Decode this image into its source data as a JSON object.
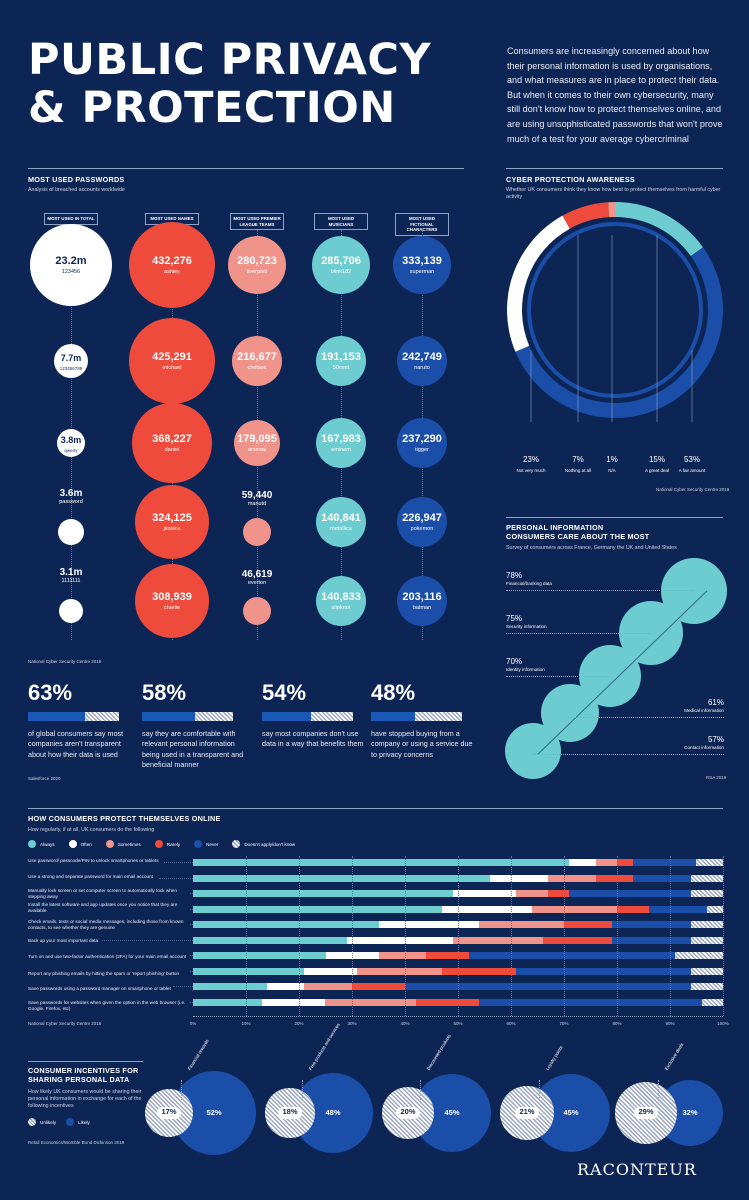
{
  "header": {
    "title_line1": "PUBLIC PRIVACY",
    "title_line2": "& PROTECTION",
    "intro": "Consumers are increasingly concerned about how their personal information is used by organisations, and what measures are in place to protect their data. But when it comes to their own cybersecurity, many still don't know how to protect themselves online, and are using unsophisticated passwords that won't prove much of a test for your average cybercriminal"
  },
  "passwords": {
    "title": "MOST USED PASSWORDS",
    "subtitle": "Analysis of breached accounts worldwide",
    "source": "National Cyber Security Centre 2019",
    "columns": [
      {
        "label": "MOST USED IN TOTAL",
        "color": "#ffffff",
        "text_color": "#0d2554",
        "items": [
          {
            "value": "23.2m",
            "name": "123456",
            "num": 23200000
          },
          {
            "value": "7.7m",
            "name": "123456789",
            "num": 7700000
          },
          {
            "value": "3.8m",
            "name": "qwerty",
            "num": 3800000
          },
          {
            "value": "3.6m",
            "name": "password",
            "num": 3600000
          },
          {
            "value": "3.1m",
            "name": "1111111",
            "num": 3100000
          }
        ]
      },
      {
        "label": "MOST USED NAMES",
        "color": "#ef4b3c",
        "text_color": "#ffffff",
        "items": [
          {
            "value": "432,276",
            "name": "ashley",
            "num": 432276
          },
          {
            "value": "425,291",
            "name": "michael",
            "num": 425291
          },
          {
            "value": "368,227",
            "name": "daniel",
            "num": 368227
          },
          {
            "value": "324,125",
            "name": "jessica",
            "num": 324125
          },
          {
            "value": "308,939",
            "name": "charlie",
            "num": 308939
          }
        ]
      },
      {
        "label": "MOST USED PREMIER LEAGUE TEAMS",
        "color": "#f0938a",
        "text_color": "#ffffff",
        "items": [
          {
            "value": "280,723",
            "name": "liverpool",
            "num": 280723
          },
          {
            "value": "216,677",
            "name": "chelsea",
            "num": 216677
          },
          {
            "value": "179,095",
            "name": "arsenal",
            "num": 179095
          },
          {
            "value": "59,440",
            "name": "manutd",
            "num": 59440
          },
          {
            "value": "46,619",
            "name": "everton",
            "num": 46619
          }
        ]
      },
      {
        "label": "MOST USED MUSICIANS",
        "color": "#6cccd0",
        "text_color": "#ffffff",
        "items": [
          {
            "value": "285,706",
            "name": "blink182",
            "num": 285706
          },
          {
            "value": "191,153",
            "name": "50cent",
            "num": 191153
          },
          {
            "value": "167,983",
            "name": "eminem",
            "num": 167983
          },
          {
            "value": "140,841",
            "name": "metallica",
            "num": 140841
          },
          {
            "value": "140,833",
            "name": "slipknot",
            "num": 140833
          }
        ]
      },
      {
        "label": "MOST USED FICTIONAL CHARACTERS",
        "color": "#1a4ea8",
        "text_color": "#ffffff",
        "items": [
          {
            "value": "333,139",
            "name": "superman",
            "num": 333139
          },
          {
            "value": "242,749",
            "name": "naruto",
            "num": 242749
          },
          {
            "value": "237,290",
            "name": "tigger",
            "num": 237290
          },
          {
            "value": "226,947",
            "name": "pokemon",
            "num": 226947
          },
          {
            "value": "203,116",
            "name": "batman",
            "num": 203116
          }
        ]
      }
    ]
  },
  "stats": {
    "source": "Salesforce 2020",
    "items": [
      {
        "pct": "63%",
        "value": 63,
        "text": "of global consumers say most companies aren't transparent about how their data is used"
      },
      {
        "pct": "58%",
        "value": 58,
        "text": "say they are comfortable with relevant personal information being used in a transparent and beneficial manner"
      },
      {
        "pct": "54%",
        "value": 54,
        "text": "say most companies don't use data in a way that benefits them"
      },
      {
        "pct": "48%",
        "value": 48,
        "text": "have stopped buying from a company or using a service due to privacy concerns"
      }
    ]
  },
  "awareness": {
    "title": "CYBER PROTECTION AWARENESS",
    "subtitle": "Whether UK consumers think they know how best to protect themselves from harmful cyber activity",
    "source": "National Cyber Security Centre 2019",
    "segments": [
      {
        "pct": "23%",
        "label": "Not very much",
        "value": 23,
        "color": "#ffffff"
      },
      {
        "pct": "7%",
        "label": "Nothing at all",
        "value": 7,
        "color": "#ef4b3c"
      },
      {
        "pct": "1%",
        "label": "N/A",
        "value": 1,
        "color": "#f0938a"
      },
      {
        "pct": "15%",
        "label": "A great deal",
        "value": 15,
        "color": "#6cccd0"
      },
      {
        "pct": "53%",
        "label": "A fair amount",
        "value": 53,
        "color": "#1a4ea8"
      }
    ]
  },
  "personal": {
    "title_line1": "PERSONAL INFORMATION",
    "title_line2": "CONSUMERS CARE ABOUT THE MOST",
    "subtitle": "Survey of consumers across France, Germany the UK and United States",
    "source": "RSA 2019",
    "items": [
      {
        "pct": "78%",
        "label": "Financial/banking data",
        "value": 78
      },
      {
        "pct": "75%",
        "label": "Security information",
        "value": 75
      },
      {
        "pct": "70%",
        "label": "Identity information",
        "value": 70
      },
      {
        "pct": "61%",
        "label": "Medical information",
        "value": 61
      },
      {
        "pct": "57%",
        "label": "Contact information",
        "value": 57
      }
    ]
  },
  "protect": {
    "title": "HOW CONSUMERS PROTECT THEMSELVES ONLINE",
    "subtitle": "How regularly, if at all, UK consumers do the following",
    "source": "National Cyber Security Centre 2019",
    "legend": [
      {
        "label": "Always",
        "color": "#6cccd0"
      },
      {
        "label": "Often",
        "color": "#ffffff"
      },
      {
        "label": "Sometimes",
        "color": "#f0938a"
      },
      {
        "label": "Rarely",
        "color": "#ef4b3c"
      },
      {
        "label": "Never",
        "color": "#1a4ea8"
      },
      {
        "label": "Doesn't apply/don't know",
        "color": "hatch"
      }
    ],
    "ticks": [
      "0%",
      "10%",
      "20%",
      "30%",
      "40%",
      "50%",
      "60%",
      "70%",
      "80%",
      "90%",
      "100%"
    ],
    "rows": [
      {
        "label": "Use password/ passcode/PIN to unlock smartphones or tablets",
        "values": [
          71,
          5,
          4,
          3,
          12,
          5
        ]
      },
      {
        "label": "Use a strong and separate password for main email account",
        "values": [
          56,
          11,
          9,
          7,
          11,
          6
        ]
      },
      {
        "label": "Manually lock screen or set computer screen to automatically lock when stepping away",
        "values": [
          49,
          12,
          6,
          4,
          23,
          6
        ]
      },
      {
        "label": "Install the latest software and app updates once you notice that they are available",
        "values": [
          47,
          17,
          16,
          6,
          11,
          3
        ]
      },
      {
        "label": "Check emails, texts or social media messages, including those from known contacts, to see whether they are genuine",
        "values": [
          35,
          19,
          16,
          9,
          15,
          6
        ]
      },
      {
        "label": "Back up your most important data",
        "values": [
          29,
          20,
          17,
          13,
          15,
          6
        ]
      },
      {
        "label": "Turn on and use two-factor authentication (2FA) for your main email account",
        "values": [
          25,
          10,
          9,
          8,
          39,
          9
        ]
      },
      {
        "label": "Report any phishing emails by hitting the spam or 'report phishing' button",
        "values": [
          21,
          10,
          16,
          14,
          33,
          6
        ]
      },
      {
        "label": "Save passwords using a password manager on smartphone or tablet",
        "values": [
          14,
          7,
          9,
          10,
          54,
          6
        ]
      },
      {
        "label": "Save passwords for websites when given the option in the web browser (i.e. Google, Firefox, etc)",
        "values": [
          13,
          12,
          17,
          12,
          42,
          4
        ]
      }
    ]
  },
  "incentives": {
    "title_line1": "CONSUMER INCENTIVES FOR",
    "title_line2": "SHARING PERSONAL DATA",
    "subtitle": "How likely UK consumers would be sharing their personal information in exchange for each of the following incentives",
    "legend_unlikely": "Unlikely",
    "legend_likely": "Likely",
    "source": "Retail Economics/Womble Bond Dickinson 2019",
    "items": [
      {
        "name": "Financial rewards",
        "unlikely": "17%",
        "likely": "52%",
        "u": 17,
        "l": 52
      },
      {
        "name": "Free products and services",
        "unlikely": "18%",
        "likely": "48%",
        "u": 18,
        "l": 48
      },
      {
        "name": "Discounted products",
        "unlikely": "20%",
        "likely": "45%",
        "u": 20,
        "l": 45
      },
      {
        "name": "Loyalty points",
        "unlikely": "21%",
        "likely": "45%",
        "u": 21,
        "l": 45
      },
      {
        "name": "Exclusive deals",
        "unlikely": "29%",
        "likely": "32%",
        "u": 29,
        "l": 32
      }
    ]
  },
  "footer": {
    "logo": "RACONTEUR"
  },
  "chart_data": [
    {
      "type": "bubble",
      "title": "MOST USED PASSWORDS",
      "categories": [
        "MOST USED IN TOTAL",
        "MOST USED NAMES",
        "MOST USED PREMIER LEAGUE TEAMS",
        "MOST USED MUSICIANS",
        "MOST USED FICTIONAL CHARACTERS"
      ],
      "series": [
        {
          "name": "MOST USED IN TOTAL",
          "labels": [
            "123456",
            "123456789",
            "qwerty",
            "password",
            "1111111"
          ],
          "values": [
            23200000,
            7700000,
            3800000,
            3600000,
            3100000
          ]
        },
        {
          "name": "MOST USED NAMES",
          "labels": [
            "ashley",
            "michael",
            "daniel",
            "jessica",
            "charlie"
          ],
          "values": [
            432276,
            425291,
            368227,
            324125,
            308939
          ]
        },
        {
          "name": "MOST USED PREMIER LEAGUE TEAMS",
          "labels": [
            "liverpool",
            "chelsea",
            "arsenal",
            "manutd",
            "everton"
          ],
          "values": [
            280723,
            216677,
            179095,
            59440,
            46619
          ]
        },
        {
          "name": "MOST USED MUSICIANS",
          "labels": [
            "blink182",
            "50cent",
            "eminem",
            "metallica",
            "slipknot"
          ],
          "values": [
            285706,
            191153,
            167983,
            140841,
            140833
          ]
        },
        {
          "name": "MOST USED FICTIONAL CHARACTERS",
          "labels": [
            "superman",
            "naruto",
            "tigger",
            "pokemon",
            "batman"
          ],
          "values": [
            333139,
            242749,
            237290,
            226947,
            203116
          ]
        }
      ]
    },
    {
      "type": "pie",
      "title": "CYBER PROTECTION AWARENESS",
      "categories": [
        "Not very much",
        "Nothing at all",
        "N/A",
        "A great deal",
        "A fair amount"
      ],
      "values": [
        23,
        7,
        1,
        15,
        53
      ]
    },
    {
      "type": "bar",
      "title": "PERSONAL INFORMATION CONSUMERS CARE ABOUT THE MOST",
      "categories": [
        "Financial/banking data",
        "Security information",
        "Identity information",
        "Medical information",
        "Contact information"
      ],
      "values": [
        78,
        75,
        70,
        61,
        57
      ]
    },
    {
      "type": "bar",
      "stacked": true,
      "title": "HOW CONSUMERS PROTECT THEMSELVES ONLINE",
      "xlim": [
        0,
        100
      ],
      "series": [
        {
          "name": "Always",
          "values": [
            71,
            56,
            49,
            47,
            35,
            29,
            25,
            21,
            14,
            13
          ]
        },
        {
          "name": "Often",
          "values": [
            5,
            11,
            12,
            17,
            19,
            20,
            10,
            10,
            7,
            12
          ]
        },
        {
          "name": "Sometimes",
          "values": [
            4,
            9,
            6,
            16,
            16,
            17,
            9,
            16,
            9,
            17
          ]
        },
        {
          "name": "Rarely",
          "values": [
            3,
            7,
            4,
            6,
            9,
            13,
            8,
            14,
            10,
            12
          ]
        },
        {
          "name": "Never",
          "values": [
            12,
            11,
            23,
            11,
            15,
            15,
            39,
            33,
            54,
            42
          ]
        },
        {
          "name": "Doesn't apply/don't know",
          "values": [
            5,
            6,
            6,
            3,
            6,
            6,
            9,
            6,
            6,
            4
          ]
        }
      ]
    },
    {
      "type": "bubble",
      "title": "CONSUMER INCENTIVES FOR SHARING PERSONAL DATA",
      "categories": [
        "Financial rewards",
        "Free products and services",
        "Discounted products",
        "Loyalty points",
        "Exclusive deals"
      ],
      "series": [
        {
          "name": "Unlikely",
          "values": [
            17,
            18,
            20,
            21,
            29
          ]
        },
        {
          "name": "Likely",
          "values": [
            52,
            48,
            45,
            45,
            32
          ]
        }
      ]
    }
  ]
}
